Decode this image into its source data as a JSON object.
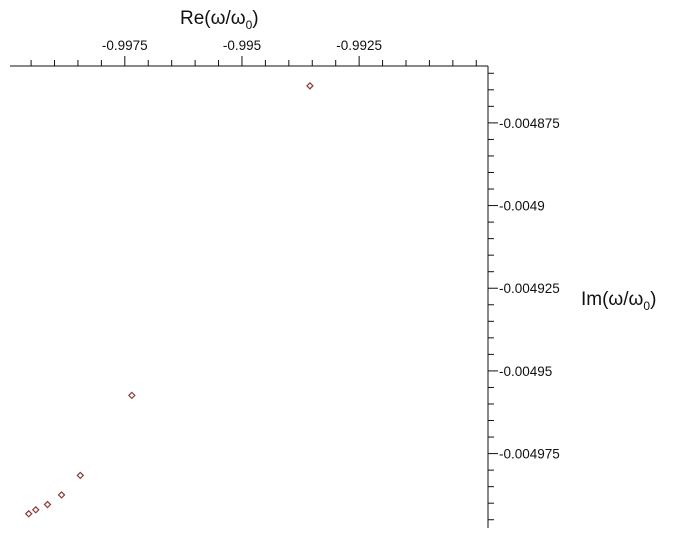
{
  "chart_data": {
    "type": "scatter",
    "title": "",
    "xlabel": {
      "main": "Re(ω/ω",
      "sub": "0",
      "close": ")"
    },
    "ylabel": {
      "main": "Im(ω/ω",
      "sub": "0",
      "close": ")"
    },
    "x_axis_position": "top",
    "y_axis_position": "right",
    "xlim": [
      -0.99995,
      -0.98975
    ],
    "ylim": [
      -0.0049975,
      -0.0048578
    ],
    "x_ticks": {
      "major": [
        -0.9975,
        -0.995,
        -0.9925
      ],
      "minor_step": 0.0005
    },
    "y_ticks": {
      "major": [
        -0.004875,
        -0.0049,
        -0.004925,
        -0.00495,
        -0.004975
      ],
      "minor_step": 5e-06
    },
    "x_tick_labels": [
      "-0.9975",
      "-0.995",
      "-0.9925"
    ],
    "y_tick_labels": [
      "-0.004875",
      "-0.0049",
      "-0.004925",
      "-0.00495",
      "-0.004975"
    ],
    "grid": false,
    "marker": "diamond",
    "marker_color": "#8b3a3a",
    "axis_color": "#111111",
    "series": [
      {
        "x": [
          -0.99355,
          -0.99735,
          -0.99845,
          -0.99885,
          -0.99915,
          -0.9994,
          -0.99955
        ],
        "y": [
          -0.0048638,
          -0.0049574,
          -0.0049816,
          -0.0049875,
          -0.0049904,
          -0.004992,
          -0.0049932
        ]
      }
    ]
  }
}
